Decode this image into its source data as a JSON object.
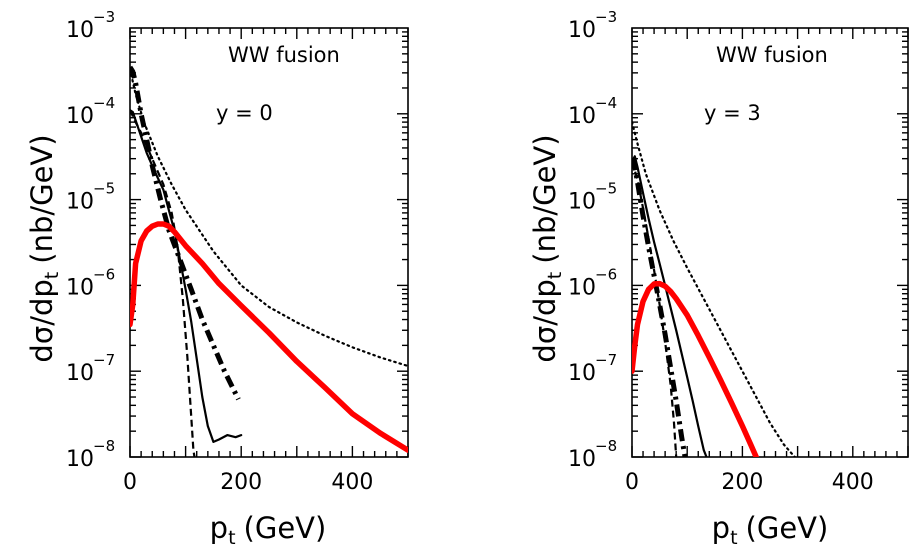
{
  "chart_data": [
    {
      "type": "line",
      "title": "",
      "annotations": [
        "WW fusion",
        "y = 0"
      ],
      "xlabel_main": "p",
      "xlabel_sub": "t",
      "xlabel_unit": "(GeV)",
      "ylabel": "dσ/dp",
      "ylabel_sub": "t",
      "ylabel_unit": "(nb/GeV)",
      "xlim": [
        0,
        500
      ],
      "ylim": [
        1e-08,
        0.001
      ],
      "yscale": "log",
      "grid": false,
      "x_ticks": [
        0,
        200,
        400
      ],
      "y_ticks": [
        {
          "base": "10",
          "exp": "−8",
          "value": 1e-08
        },
        {
          "base": "10",
          "exp": "−7",
          "value": 1e-07
        },
        {
          "base": "10",
          "exp": "−6",
          "value": 1e-06
        },
        {
          "base": "10",
          "exp": "−5",
          "value": 1e-05
        },
        {
          "base": "10",
          "exp": "−4",
          "value": 0.0001
        },
        {
          "base": "10",
          "exp": "−3",
          "value": 0.001
        }
      ],
      "series": [
        {
          "style": "dotted",
          "color": "#000000",
          "x": [
            0,
            10,
            25,
            50,
            75,
            100,
            150,
            200,
            250,
            300,
            350,
            400,
            450,
            500
          ],
          "y": [
            0.00033,
            0.00017,
            8e-05,
            3.2e-05,
            1.5e-05,
            7.6e-06,
            2.5e-06,
            1e-06,
            5.6e-07,
            3.7e-07,
            2.6e-07,
            1.9e-07,
            1.45e-07,
            1.15e-07
          ]
        },
        {
          "style": "dashdot",
          "color": "#000000",
          "x": [
            0,
            5,
            10,
            20,
            30,
            40,
            55,
            70,
            90,
            110,
            130,
            150,
            170,
            195
          ],
          "y": [
            0.00035,
            0.00031,
            0.00023,
            0.0001,
            5e-05,
            2.5e-05,
            1e-05,
            4.4e-06,
            2e-06,
            9e-07,
            4e-07,
            2e-07,
            1e-07,
            4.7e-08
          ]
        },
        {
          "style": "solid",
          "color": "#000000",
          "x": [
            0,
            5,
            15,
            30,
            45,
            60,
            70,
            80,
            90,
            100,
            110,
            120,
            130,
            140,
            150,
            160,
            175,
            190,
            200
          ],
          "y": [
            0.00011,
            0.000105,
            6.8e-05,
            3.5e-05,
            2.1e-05,
            1.3e-05,
            7.5e-06,
            4.3e-06,
            2e-06,
            9e-07,
            3.8e-07,
            1.4e-07,
            5e-08,
            2.3e-08,
            1.5e-08,
            1.6e-08,
            1.8e-08,
            1.7e-08,
            1.8e-08
          ]
        },
        {
          "style": "dashed",
          "color": "#000000",
          "x": [
            0,
            10,
            20,
            40,
            60,
            75,
            85,
            95,
            103,
            110,
            114,
            116
          ],
          "y": [
            0.00011,
            8e-05,
            6e-05,
            3e-05,
            1.5e-05,
            7e-06,
            3e-06,
            7e-07,
            1.5e-07,
            3e-08,
            1.2e-08,
            1e-08
          ]
        },
        {
          "style": "solid-thick",
          "color": "#ff0000",
          "x": [
            0,
            5,
            10,
            20,
            30,
            40,
            50,
            60,
            70,
            80,
            100,
            130,
            160,
            200,
            250,
            300,
            350,
            400,
            450,
            500
          ],
          "y": [
            3.5e-07,
            6e-07,
            1.8e-06,
            3.3e-06,
            4.3e-06,
            4.9e-06,
            5.2e-06,
            5.2e-06,
            4.9e-06,
            4.2e-06,
            2.9e-06,
            1.8e-06,
            1.05e-06,
            5.8e-07,
            2.8e-07,
            1.3e-07,
            6.5e-08,
            3.2e-08,
            1.9e-08,
            1.2e-08
          ]
        }
      ]
    },
    {
      "type": "line",
      "title": "",
      "annotations": [
        "WW fusion",
        "y = 3"
      ],
      "xlabel_main": "p",
      "xlabel_sub": "t",
      "xlabel_unit": "(GeV)",
      "ylabel": "dσ/dp",
      "ylabel_sub": "t",
      "ylabel_unit": "(nb/GeV)",
      "xlim": [
        0,
        500
      ],
      "ylim": [
        1e-08,
        0.001
      ],
      "yscale": "log",
      "grid": false,
      "x_ticks": [
        0,
        200,
        400
      ],
      "y_ticks": [
        {
          "base": "10",
          "exp": "−8",
          "value": 1e-08
        },
        {
          "base": "10",
          "exp": "−7",
          "value": 1e-07
        },
        {
          "base": "10",
          "exp": "−6",
          "value": 1e-06
        },
        {
          "base": "10",
          "exp": "−5",
          "value": 1e-05
        },
        {
          "base": "10",
          "exp": "−4",
          "value": 0.0001
        },
        {
          "base": "10",
          "exp": "−3",
          "value": 0.001
        }
      ],
      "series": [
        {
          "style": "dotted",
          "color": "#000000",
          "x": [
            0,
            10,
            25,
            50,
            75,
            100,
            125,
            150,
            175,
            200,
            225,
            250,
            275,
            295
          ],
          "y": [
            8e-05,
            4.5e-05,
            2e-05,
            7.5e-06,
            3.3e-06,
            1.6e-06,
            8e-07,
            4e-07,
            2e-07,
            1e-07,
            5e-08,
            2.5e-08,
            1.4e-08,
            1e-08
          ]
        },
        {
          "style": "dashdot",
          "color": "#000000",
          "x": [
            0,
            5,
            10,
            20,
            30,
            40,
            50,
            60,
            70,
            80,
            90,
            96
          ],
          "y": [
            3e-05,
            2.4e-05,
            1.6e-05,
            6.5e-06,
            2.8e-06,
            1.3e-06,
            6e-07,
            2.7e-07,
            1.1e-07,
            4.5e-08,
            1.7e-08,
            1e-08
          ]
        },
        {
          "style": "solid",
          "color": "#000000",
          "x": [
            0,
            5,
            10,
            20,
            30,
            40,
            50,
            60,
            70,
            80,
            90,
            100,
            110,
            120,
            130,
            135
          ],
          "y": [
            2.8e-05,
            3.2e-05,
            2.4e-05,
            1.2e-05,
            6e-06,
            3.2e-06,
            1.8e-06,
            1e-06,
            5.5e-07,
            3e-07,
            1.6e-07,
            8.5e-08,
            4.5e-08,
            2.3e-08,
            1.2e-08,
            1e-08
          ]
        },
        {
          "style": "dashed",
          "color": "#000000",
          "x": [
            0,
            10,
            20,
            30,
            40,
            50,
            60,
            70,
            76,
            80
          ],
          "y": [
            2.8e-05,
            1.7e-05,
            8e-06,
            3.5e-06,
            1.5e-06,
            6e-07,
            2.2e-07,
            7e-08,
            2.5e-08,
            1e-08
          ]
        },
        {
          "style": "solid-thick",
          "color": "#ff0000",
          "x": [
            0,
            5,
            10,
            20,
            30,
            40,
            50,
            60,
            70,
            80,
            100,
            120,
            140,
            160,
            180,
            200,
            215,
            225
          ],
          "y": [
            1e-07,
            2e-07,
            3.5e-07,
            6.5e-07,
            9e-07,
            1.04e-06,
            1.05e-06,
            9.8e-07,
            8.5e-07,
            7e-07,
            4.5e-07,
            2.6e-07,
            1.45e-07,
            8e-08,
            4.3e-08,
            2.3e-08,
            1.4e-08,
            1e-08
          ]
        }
      ]
    }
  ]
}
